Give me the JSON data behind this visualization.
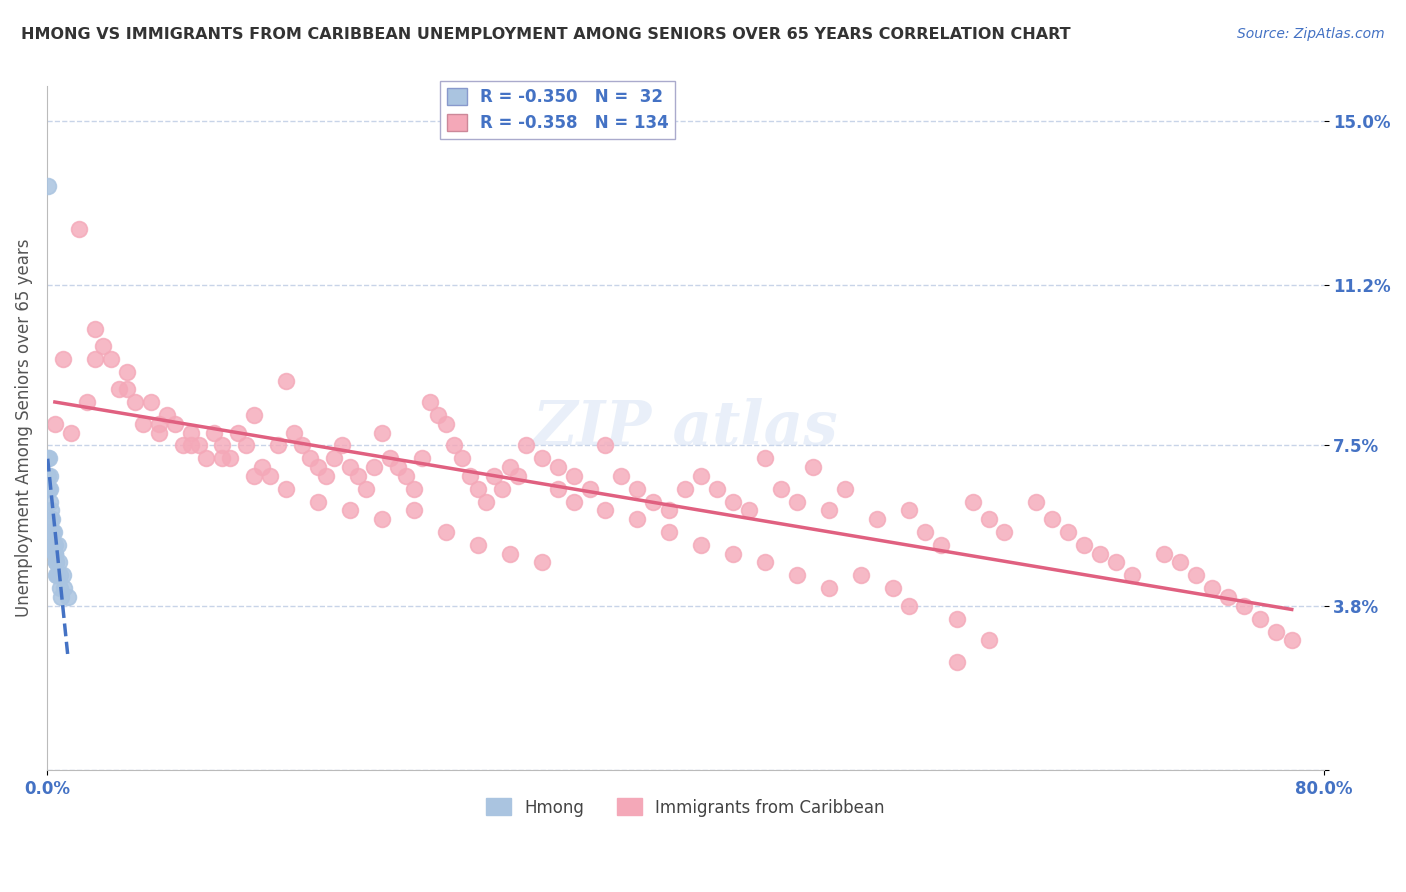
{
  "title": "HMONG VS IMMIGRANTS FROM CARIBBEAN UNEMPLOYMENT AMONG SENIORS OVER 65 YEARS CORRELATION CHART",
  "source": "Source: ZipAtlas.com",
  "ylabel": "Unemployment Among Seniors over 65 years",
  "xlim": [
    0,
    80
  ],
  "ylim": [
    0,
    15.8
  ],
  "ytick_vals": [
    0,
    3.8,
    7.5,
    11.2,
    15.0
  ],
  "ytick_labels": [
    "",
    "3.8%",
    "7.5%",
    "11.2%",
    "15.0%"
  ],
  "xtick_vals": [
    0,
    80
  ],
  "xtick_labels": [
    "0.0%",
    "80.0%"
  ],
  "hmong_R": -0.35,
  "hmong_N": 32,
  "carib_R": -0.358,
  "carib_N": 134,
  "hmong_scatter_color": "#aac4e0",
  "carib_scatter_color": "#f4a8b8",
  "hmong_line_color": "#4472c4",
  "carib_line_color": "#e06080",
  "grid_color": "#c8d4e8",
  "title_color": "#333333",
  "axis_label_color": "#4472c4",
  "hmong_x": [
    0.05,
    0.08,
    0.1,
    0.12,
    0.15,
    0.18,
    0.2,
    0.22,
    0.25,
    0.28,
    0.3,
    0.35,
    0.38,
    0.4,
    0.42,
    0.45,
    0.48,
    0.5,
    0.52,
    0.55,
    0.58,
    0.6,
    0.65,
    0.7,
    0.75,
    0.8,
    0.85,
    0.9,
    1.0,
    1.1,
    1.3,
    0.05
  ],
  "hmong_y": [
    7.2,
    6.8,
    6.5,
    6.5,
    7.2,
    6.8,
    6.5,
    6.2,
    6.0,
    5.8,
    5.5,
    5.8,
    5.5,
    5.2,
    5.5,
    5.2,
    5.0,
    5.2,
    5.0,
    4.8,
    4.5,
    4.8,
    4.5,
    5.2,
    4.8,
    4.5,
    4.2,
    4.0,
    4.5,
    4.2,
    4.0,
    13.5
  ],
  "carib_x": [
    0.5,
    1.0,
    1.5,
    2.0,
    2.5,
    3.0,
    3.5,
    4.0,
    4.5,
    5.0,
    5.5,
    6.0,
    6.5,
    7.0,
    7.5,
    8.0,
    8.5,
    9.0,
    9.5,
    10.0,
    10.5,
    11.0,
    11.5,
    12.0,
    12.5,
    13.0,
    13.5,
    14.0,
    14.5,
    15.0,
    15.5,
    16.0,
    16.5,
    17.0,
    17.5,
    18.0,
    18.5,
    19.0,
    19.5,
    20.0,
    20.5,
    21.0,
    21.5,
    22.0,
    22.5,
    23.0,
    23.5,
    24.0,
    24.5,
    25.0,
    25.5,
    26.0,
    26.5,
    27.0,
    27.5,
    28.0,
    28.5,
    29.0,
    29.5,
    30.0,
    31.0,
    32.0,
    33.0,
    34.0,
    35.0,
    36.0,
    37.0,
    38.0,
    39.0,
    40.0,
    41.0,
    42.0,
    43.0,
    44.0,
    45.0,
    46.0,
    47.0,
    48.0,
    49.0,
    50.0,
    52.0,
    54.0,
    55.0,
    56.0,
    57.0,
    58.0,
    59.0,
    60.0,
    62.0,
    63.0,
    64.0,
    65.0,
    66.0,
    67.0,
    68.0,
    70.0,
    71.0,
    72.0,
    73.0,
    74.0,
    75.0,
    76.0,
    77.0,
    78.0,
    3.0,
    5.0,
    7.0,
    9.0,
    11.0,
    13.0,
    15.0,
    17.0,
    19.0,
    21.0,
    23.0,
    25.0,
    27.0,
    29.0,
    31.0,
    32.0,
    33.0,
    35.0,
    37.0,
    39.0,
    41.0,
    43.0,
    45.0,
    47.0,
    49.0,
    51.0,
    53.0,
    54.0,
    57.0,
    59.0
  ],
  "carib_y": [
    8.0,
    9.5,
    7.8,
    12.5,
    8.5,
    10.2,
    9.8,
    9.5,
    8.8,
    9.2,
    8.5,
    8.0,
    8.5,
    7.8,
    8.2,
    8.0,
    7.5,
    7.8,
    7.5,
    7.2,
    7.8,
    7.5,
    7.2,
    7.8,
    7.5,
    8.2,
    7.0,
    6.8,
    7.5,
    9.0,
    7.8,
    7.5,
    7.2,
    7.0,
    6.8,
    7.2,
    7.5,
    7.0,
    6.8,
    6.5,
    7.0,
    7.8,
    7.2,
    7.0,
    6.8,
    6.5,
    7.2,
    8.5,
    8.2,
    8.0,
    7.5,
    7.2,
    6.8,
    6.5,
    6.2,
    6.8,
    6.5,
    7.0,
    6.8,
    7.5,
    7.2,
    7.0,
    6.8,
    6.5,
    7.5,
    6.8,
    6.5,
    6.2,
    6.0,
    6.5,
    6.8,
    6.5,
    6.2,
    6.0,
    7.2,
    6.5,
    6.2,
    7.0,
    6.0,
    6.5,
    5.8,
    6.0,
    5.5,
    5.2,
    2.5,
    6.2,
    5.8,
    5.5,
    6.2,
    5.8,
    5.5,
    5.2,
    5.0,
    4.8,
    4.5,
    5.0,
    4.8,
    4.5,
    4.2,
    4.0,
    3.8,
    3.5,
    3.2,
    3.0,
    9.5,
    8.8,
    8.0,
    7.5,
    7.2,
    6.8,
    6.5,
    6.2,
    6.0,
    5.8,
    6.0,
    5.5,
    5.2,
    5.0,
    4.8,
    6.5,
    6.2,
    6.0,
    5.8,
    5.5,
    5.2,
    5.0,
    4.8,
    4.5,
    4.2,
    4.5,
    4.2,
    3.8,
    3.5,
    3.0
  ]
}
